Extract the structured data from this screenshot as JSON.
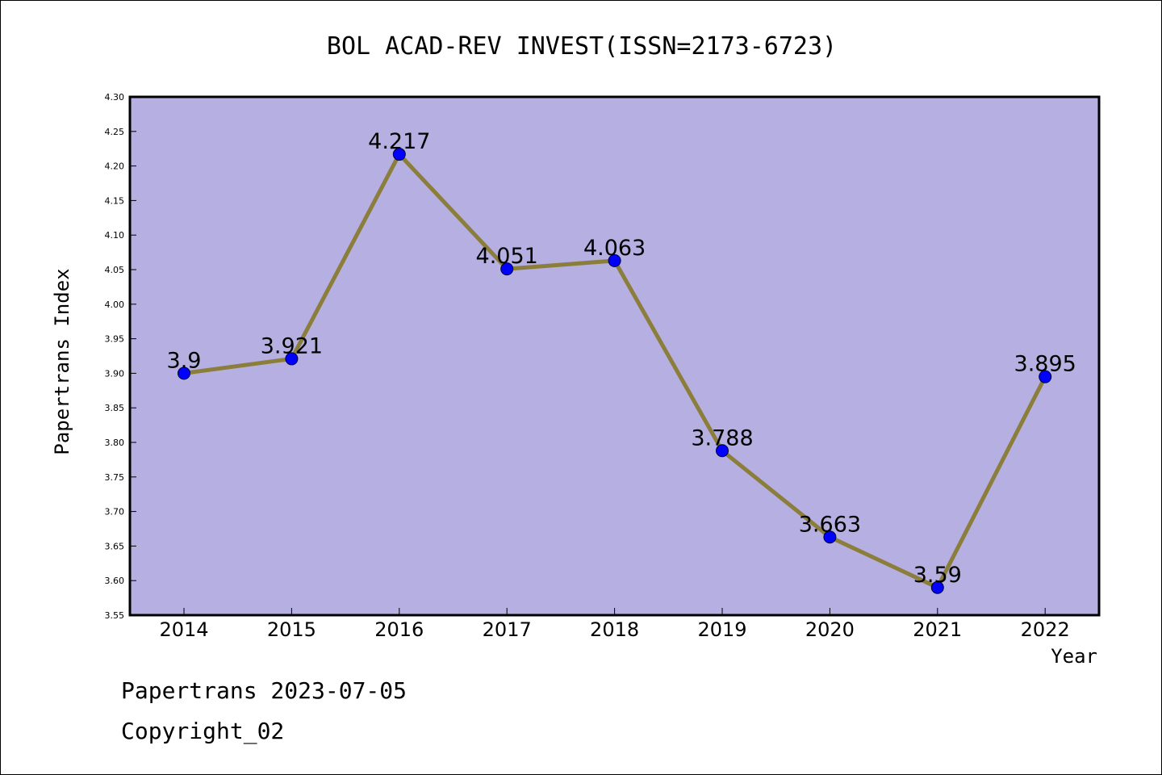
{
  "chart_data": {
    "type": "line",
    "title": "BOL ACAD-REV INVEST(ISSN=2173-6723)",
    "xlabel": "Year",
    "ylabel": "Papertrans Index",
    "categories": [
      "2014",
      "2015",
      "2016",
      "2017",
      "2018",
      "2019",
      "2020",
      "2021",
      "2022"
    ],
    "values": [
      3.9,
      3.921,
      4.217,
      4.051,
      4.063,
      3.788,
      3.663,
      3.59,
      3.895
    ],
    "data_labels": [
      "3.9",
      "3.921",
      "4.217",
      "4.051",
      "4.063",
      "3.788",
      "3.663",
      "3.59",
      "3.895"
    ],
    "ylim": [
      3.55,
      4.3
    ],
    "yticks": [
      "3.55",
      "3.60",
      "3.65",
      "3.70",
      "3.75",
      "3.80",
      "3.85",
      "3.90",
      "3.95",
      "4.00",
      "4.05",
      "4.10",
      "4.15",
      "4.20",
      "4.25",
      "4.30"
    ],
    "grid": false,
    "colors": {
      "plot_background": "#b5afe2",
      "line": "#8b7d3a",
      "marker": "#0000ff"
    }
  },
  "footer": {
    "source": "Papertrans 2023-07-05",
    "copyright": "Copyright_02"
  }
}
